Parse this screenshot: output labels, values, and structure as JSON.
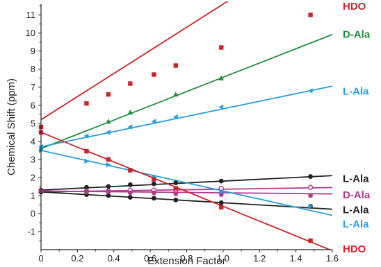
{
  "chart_data": {
    "type": "scatter",
    "xlabel": "Extension Factor",
    "ylabel": "Chemical Shift (ppm)",
    "xlim": [
      0,
      1.6
    ],
    "ylim": [
      -2,
      11.6
    ],
    "xticks": [
      "0",
      "0.2",
      "0.4",
      "0.6",
      "0.8",
      "1.0",
      "1.2",
      "1.4",
      "1.6"
    ],
    "yticks": [
      "-1",
      "0",
      "1",
      "2",
      "3",
      "4",
      "5",
      "6",
      "7",
      "8",
      "9",
      "10",
      "11"
    ],
    "legend": "right-side labels at line ends",
    "series": [
      {
        "name": "HDO",
        "color": "#cc2229",
        "marker": "square",
        "line": [
          5.2,
          6.4
        ],
        "x": [
          0,
          0.25,
          0.37,
          0.49,
          0.62,
          0.74,
          0.99,
          1.48
        ],
        "y": [
          4.8,
          6.1,
          6.6,
          7.2,
          7.7,
          8.2,
          9.2,
          11.0
        ]
      },
      {
        "name": "D-Ala",
        "color": "#1f8c3b",
        "marker": "triangle-up",
        "line": [
          3.6,
          3.95
        ],
        "x": [
          0,
          0.37,
          0.49,
          0.74,
          0.99
        ],
        "y": [
          3.6,
          5.1,
          5.6,
          6.6,
          7.5
        ]
      },
      {
        "name": "L-Ala",
        "color": "#2a9fd8",
        "marker": "triangle-left",
        "line": [
          3.7,
          2.1
        ],
        "x": [
          0,
          0.25,
          0.37,
          0.49,
          0.62,
          0.74,
          0.99,
          1.48
        ],
        "y": [
          3.7,
          4.3,
          4.5,
          4.8,
          5.1,
          5.35,
          5.9,
          6.8
        ]
      },
      {
        "name": "L-Ala",
        "color": "#222222",
        "marker": "circle",
        "line": [
          1.3,
          0.5
        ],
        "x": [
          0,
          0.25,
          0.37,
          0.49,
          0.62,
          0.74,
          0.99,
          1.48
        ],
        "y": [
          1.3,
          1.45,
          1.5,
          1.6,
          1.65,
          1.7,
          1.8,
          2.05
        ]
      },
      {
        "name": "D-Ala",
        "color": "#b03a8e",
        "marker": "circle-open",
        "line": [
          1.2,
          0.15
        ],
        "x": [
          0,
          0.25,
          0.37,
          0.49,
          0.62,
          0.74,
          0.99,
          1.48
        ],
        "y": [
          1.2,
          1.25,
          1.25,
          1.3,
          1.3,
          1.3,
          1.4,
          1.45
        ]
      },
      {
        "name": "L-Ala",
        "color": "#222222",
        "marker": "circle",
        "line": [
          1.2,
          -0.6
        ],
        "x": [
          0,
          0.25,
          0.37,
          0.49,
          0.62,
          0.74,
          0.99,
          1.48
        ],
        "y": [
          1.2,
          1.05,
          1.0,
          0.9,
          0.85,
          0.75,
          0.6,
          0.4
        ]
      },
      {
        "name": "D-Ala",
        "color": "#b03a8e",
        "marker": "circle",
        "line": [
          1.25,
          -0.1
        ],
        "x": [
          0,
          0.25,
          0.37,
          0.49,
          0.62,
          0.74,
          0.99,
          1.48
        ],
        "y": [
          1.25,
          1.2,
          1.2,
          1.15,
          1.15,
          1.1,
          1.05,
          1.0
        ]
      },
      {
        "name": "L-Ala",
        "color": "#2a9fd8",
        "marker": "triangle-right",
        "line": [
          3.5,
          -2.25
        ],
        "x": [
          0,
          0.25,
          0.37,
          0.49,
          0.62,
          0.99,
          1.48
        ],
        "y": [
          3.5,
          2.9,
          2.7,
          2.4,
          2.0,
          1.2,
          0.4
        ]
      },
      {
        "name": "HDO",
        "color": "#cc2229",
        "marker": "square",
        "line": [
          4.5,
          -4.1
        ],
        "x": [
          0,
          0.25,
          0.37,
          0.49,
          0.62,
          0.74,
          0.99,
          1.48
        ],
        "y": [
          4.5,
          3.45,
          3.0,
          2.4,
          1.9,
          1.4,
          0.35,
          -1.5
        ]
      }
    ],
    "labels": [
      {
        "text": "HDO",
        "color": "#cc2229",
        "at": 11.5
      },
      {
        "text": "D-Ala",
        "color": "#1f8c3b",
        "at": 9.95
      },
      {
        "text": "L-Ala",
        "color": "#2a9fd8",
        "at": 6.8
      },
      {
        "text": "L-Ala",
        "color": "#222222",
        "at": 1.95
      },
      {
        "text": "D-Ala",
        "color": "#b03a8e",
        "at": 1.05
      },
      {
        "text": "L-Ala",
        "color": "#222222",
        "at": 0.22
      },
      {
        "text": "L-Ala",
        "color": "#2a9fd8",
        "at": -0.55
      },
      {
        "text": "HDO",
        "color": "#cc2229",
        "at": -1.95
      }
    ]
  }
}
